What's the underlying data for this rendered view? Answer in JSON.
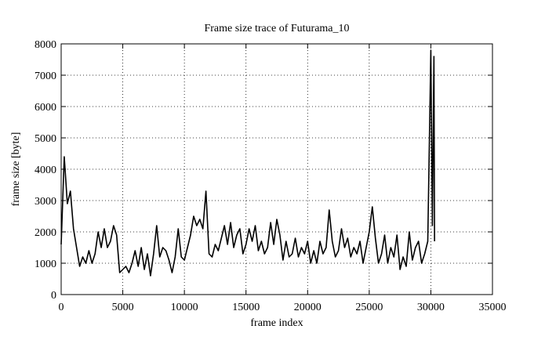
{
  "chart_data": {
    "type": "line",
    "title": "Frame size trace of Futurama_10",
    "xlabel": "frame index",
    "ylabel": "frame size [byte]",
    "xlim": [
      0,
      35000
    ],
    "ylim": [
      0,
      8000
    ],
    "xticks": [
      0,
      5000,
      10000,
      15000,
      20000,
      25000,
      30000,
      35000
    ],
    "yticks": [
      0,
      1000,
      2000,
      3000,
      4000,
      5000,
      6000,
      7000,
      8000
    ],
    "grid": true,
    "color": "#000000",
    "x": [
      0,
      250,
      500,
      750,
      1000,
      1250,
      1500,
      1750,
      2000,
      2250,
      2500,
      2750,
      3000,
      3250,
      3500,
      3750,
      4000,
      4250,
      4500,
      4750,
      5000,
      5250,
      5500,
      5750,
      6000,
      6250,
      6500,
      6750,
      7000,
      7250,
      7500,
      7750,
      8000,
      8250,
      8500,
      8750,
      9000,
      9250,
      9500,
      9750,
      10000,
      10250,
      10500,
      10750,
      11000,
      11250,
      11500,
      11750,
      12000,
      12250,
      12500,
      12750,
      13000,
      13250,
      13500,
      13750,
      14000,
      14250,
      14500,
      14750,
      15000,
      15250,
      15500,
      15750,
      16000,
      16250,
      16500,
      16750,
      17000,
      17250,
      17500,
      17750,
      18000,
      18250,
      18500,
      18750,
      19000,
      19250,
      19500,
      19750,
      20000,
      20250,
      20500,
      20750,
      21000,
      21250,
      21500,
      21750,
      22000,
      22250,
      22500,
      22750,
      23000,
      23250,
      23500,
      23750,
      24000,
      24250,
      24500,
      24750,
      25000,
      25250,
      25500,
      25750,
      26000,
      26250,
      26500,
      26750,
      27000,
      27250,
      27500,
      27750,
      28000,
      28250,
      28500,
      28750,
      29000,
      29250,
      29500,
      29750,
      30000,
      30125,
      30250,
      30300
    ],
    "values": [
      1600,
      4400,
      2900,
      3300,
      2100,
      1500,
      900,
      1200,
      1000,
      1400,
      1000,
      1300,
      2000,
      1500,
      2100,
      1500,
      1700,
      2200,
      1900,
      700,
      800,
      900,
      700,
      1000,
      1400,
      900,
      1500,
      800,
      1300,
      600,
      1300,
      2200,
      1200,
      1500,
      1400,
      1100,
      700,
      1200,
      2100,
      1200,
      1100,
      1500,
      1900,
      2500,
      2200,
      2400,
      2100,
      3300,
      1300,
      1200,
      1600,
      1400,
      1800,
      2200,
      1600,
      2300,
      1500,
      1900,
      2100,
      1300,
      1600,
      2100,
      1700,
      2200,
      1400,
      1700,
      1300,
      1500,
      2300,
      1600,
      2400,
      1900,
      1100,
      1700,
      1200,
      1300,
      1800,
      1200,
      1500,
      1300,
      1700,
      1000,
      1400,
      1000,
      1700,
      1300,
      1500,
      2700,
      1700,
      1200,
      1400,
      2100,
      1500,
      1800,
      1200,
      1500,
      1300,
      1700,
      1000,
      1500,
      2000,
      2800,
      1800,
      1000,
      1300,
      1900,
      1000,
      1500,
      1200,
      1900,
      800,
      1200,
      900,
      2000,
      1100,
      1500,
      1700,
      1000,
      1300,
      1700,
      7800,
      2200,
      7600,
      1700
    ]
  }
}
